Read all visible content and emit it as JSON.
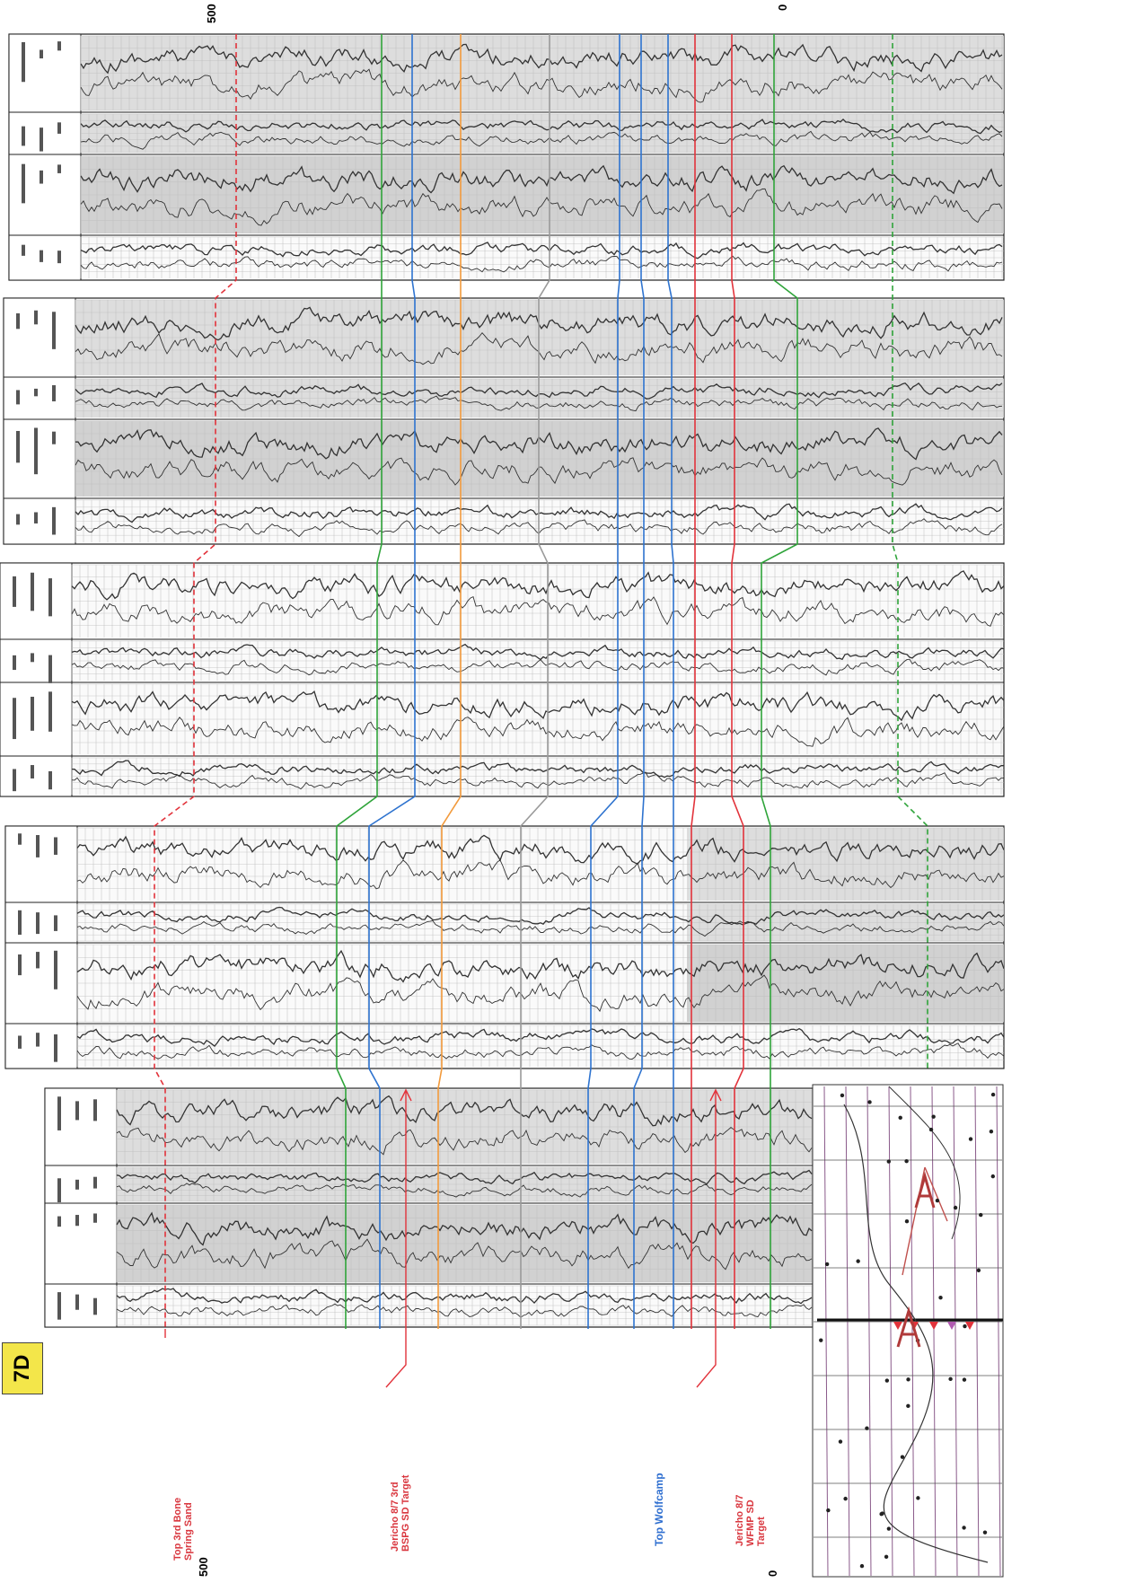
{
  "panel_tag": "7D",
  "scale_labels": {
    "top_left": "500",
    "top_right": "0",
    "bottom_left": "500",
    "bottom_right": "0"
  },
  "bottom_labels": [
    {
      "id": "top-3rd-bone-spring-sand",
      "text": "Top 3rd Bone Spring Sand",
      "color": "#d9363e"
    },
    {
      "id": "jericho-3rd-bspg-target",
      "text": "Jericho 8/7 3rd BSPG SD Target",
      "color": "#d9363e"
    },
    {
      "id": "top-wolfcamp",
      "text": "Top Wolfcamp",
      "color": "#2f6fd0"
    },
    {
      "id": "jericho-wfmp-target",
      "text": "Jericho 8/7 WFMP SD Target",
      "color": "#d9363e"
    }
  ],
  "colors": {
    "red": "#e2333b",
    "green": "#2fa43a",
    "blue": "#2e73cf",
    "orange": "#f29a3c",
    "gray": "#9a9a9a",
    "log_ink": "#333333",
    "grid": "#bdbdbd",
    "tag": "#f3e64a"
  },
  "icons": [
    "target-arrow-icon",
    "map-pin-icon"
  ]
}
